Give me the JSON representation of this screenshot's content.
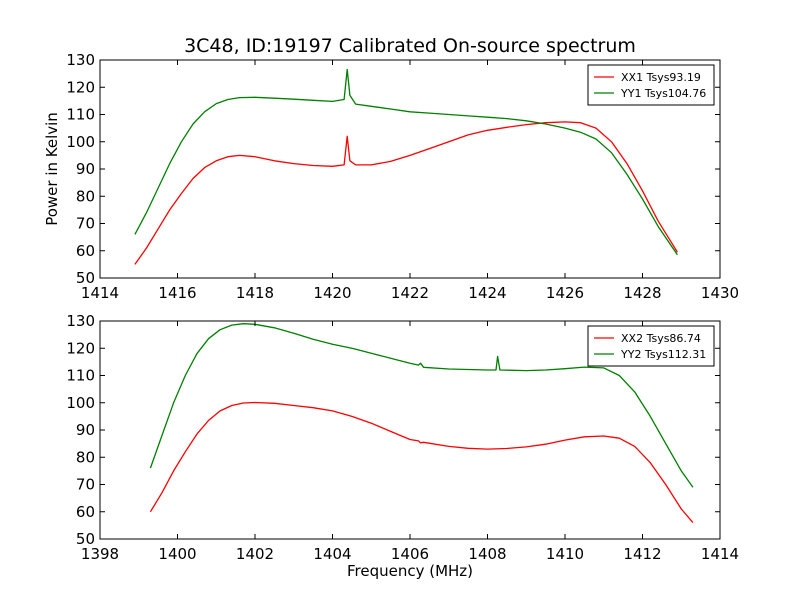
{
  "chart_data": [
    {
      "type": "line",
      "title": "3C48, ID:19197 Calibrated On-source spectrum",
      "xlabel": "",
      "ylabel": "Power in Kelvin",
      "xlim": [
        1414,
        1430
      ],
      "ylim": [
        50,
        130
      ],
      "xticks": [
        1414,
        1416,
        1418,
        1420,
        1422,
        1424,
        1426,
        1428,
        1430
      ],
      "yticks": [
        50,
        60,
        70,
        80,
        90,
        100,
        110,
        120,
        130
      ],
      "grid": false,
      "legend_position": "top-right",
      "series": [
        {
          "name": "XX1 Tsys93.19",
          "color": "#ff0000",
          "x": [
            1414.9,
            1415.2,
            1415.5,
            1415.8,
            1416.1,
            1416.4,
            1416.7,
            1417.0,
            1417.3,
            1417.6,
            1418.0,
            1418.5,
            1419.0,
            1419.5,
            1420.0,
            1420.3,
            1420.38,
            1420.45,
            1420.6,
            1421.0,
            1421.5,
            1422.0,
            1422.5,
            1423.0,
            1423.5,
            1424.0,
            1424.5,
            1425.0,
            1425.5,
            1426.0,
            1426.4,
            1426.8,
            1427.2,
            1427.6,
            1428.0,
            1428.4,
            1428.9
          ],
          "y": [
            55,
            61,
            68,
            75,
            81,
            86.5,
            90.5,
            93,
            94.5,
            95,
            94.5,
            93,
            92,
            91.3,
            91,
            91.5,
            102,
            93,
            91.5,
            91.5,
            92.8,
            95,
            97.5,
            100,
            102.5,
            104.2,
            105.3,
            106.3,
            107,
            107.3,
            107,
            105,
            100,
            92,
            82,
            71,
            59.5
          ]
        },
        {
          "name": "YY1 Tsys104.76",
          "color": "#008000",
          "x": [
            1414.9,
            1415.2,
            1415.5,
            1415.8,
            1416.1,
            1416.4,
            1416.7,
            1417.0,
            1417.3,
            1417.6,
            1418.0,
            1418.5,
            1419.0,
            1419.5,
            1420.0,
            1420.3,
            1420.38,
            1420.45,
            1420.6,
            1421.0,
            1421.5,
            1422.0,
            1422.5,
            1423.0,
            1423.5,
            1424.0,
            1424.5,
            1425.0,
            1425.5,
            1426.0,
            1426.4,
            1426.8,
            1427.2,
            1427.6,
            1428.0,
            1428.4,
            1428.9
          ],
          "y": [
            66,
            74,
            83,
            92,
            100,
            106.5,
            111,
            114,
            115.5,
            116.2,
            116.3,
            116,
            115.6,
            115.2,
            114.8,
            115.5,
            126.5,
            117,
            113.8,
            113,
            112,
            111,
            110.5,
            110,
            109.5,
            109,
            108.5,
            107.7,
            106.5,
            105,
            103.5,
            101,
            96,
            88,
            79,
            69,
            58.5
          ]
        }
      ]
    },
    {
      "type": "line",
      "title": "",
      "xlabel": "Frequency (MHz)",
      "ylabel": "",
      "xlim": [
        1398,
        1414
      ],
      "ylim": [
        50,
        130
      ],
      "xticks": [
        1398,
        1400,
        1402,
        1404,
        1406,
        1408,
        1410,
        1412,
        1414
      ],
      "yticks": [
        50,
        60,
        70,
        80,
        90,
        100,
        110,
        120,
        130
      ],
      "grid": false,
      "legend_position": "top-right",
      "series": [
        {
          "name": "XX2 Tsys86.74",
          "color": "#ff0000",
          "x": [
            1399.3,
            1399.6,
            1399.9,
            1400.2,
            1400.5,
            1400.8,
            1401.1,
            1401.4,
            1401.7,
            1402.0,
            1402.5,
            1403.0,
            1403.5,
            1404.0,
            1404.5,
            1405.0,
            1405.5,
            1406.0,
            1406.22,
            1406.27,
            1406.35,
            1407.0,
            1407.5,
            1408.0,
            1408.5,
            1409.0,
            1409.5,
            1410.0,
            1410.5,
            1411.0,
            1411.4,
            1411.8,
            1412.2,
            1412.6,
            1413.0,
            1413.3
          ],
          "y": [
            60,
            67,
            75,
            82,
            88.5,
            93.5,
            97,
            99,
            99.9,
            100.1,
            99.8,
            99,
            98.2,
            97,
            95,
            92.5,
            89.5,
            86.5,
            86,
            85.3,
            85.5,
            84,
            83.3,
            83,
            83.2,
            83.8,
            84.8,
            86.3,
            87.5,
            87.8,
            87,
            84,
            78,
            70,
            61,
            56
          ]
        },
        {
          "name": "YY2 Tsys112.31",
          "color": "#008000",
          "x": [
            1399.3,
            1399.6,
            1399.9,
            1400.2,
            1400.5,
            1400.8,
            1401.1,
            1401.4,
            1401.7,
            1402.0,
            1402.5,
            1403.0,
            1403.5,
            1404.0,
            1404.5,
            1405.0,
            1405.5,
            1406.0,
            1406.22,
            1406.27,
            1406.35,
            1407.0,
            1407.5,
            1408.0,
            1408.22,
            1408.26,
            1408.32,
            1409.0,
            1409.5,
            1410.0,
            1410.5,
            1411.0,
            1411.4,
            1411.8,
            1412.2,
            1412.6,
            1413.0,
            1413.3
          ],
          "y": [
            76,
            88,
            100,
            110,
            118,
            123.5,
            126.8,
            128.5,
            129,
            128.8,
            127.5,
            125.5,
            123.3,
            121.5,
            120,
            118.2,
            116.3,
            114.5,
            113.8,
            114.5,
            113,
            112.4,
            112.2,
            112,
            112,
            117,
            112,
            111.8,
            112,
            112.5,
            113.1,
            112.8,
            110,
            104,
            95,
            85,
            75,
            69
          ]
        }
      ]
    }
  ]
}
